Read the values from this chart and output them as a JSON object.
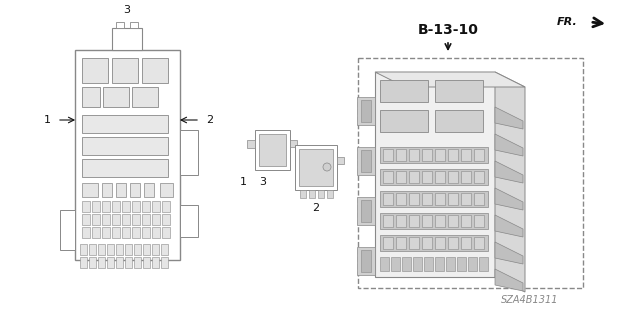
{
  "bg_color": "#ffffff",
  "part_label": "B-13-10",
  "part_code": "SZA4B1311",
  "fr_label": "FR.",
  "gray": "#888888",
  "dark": "#333333",
  "light_gray": "#cccccc",
  "med_gray": "#aaaaaa"
}
